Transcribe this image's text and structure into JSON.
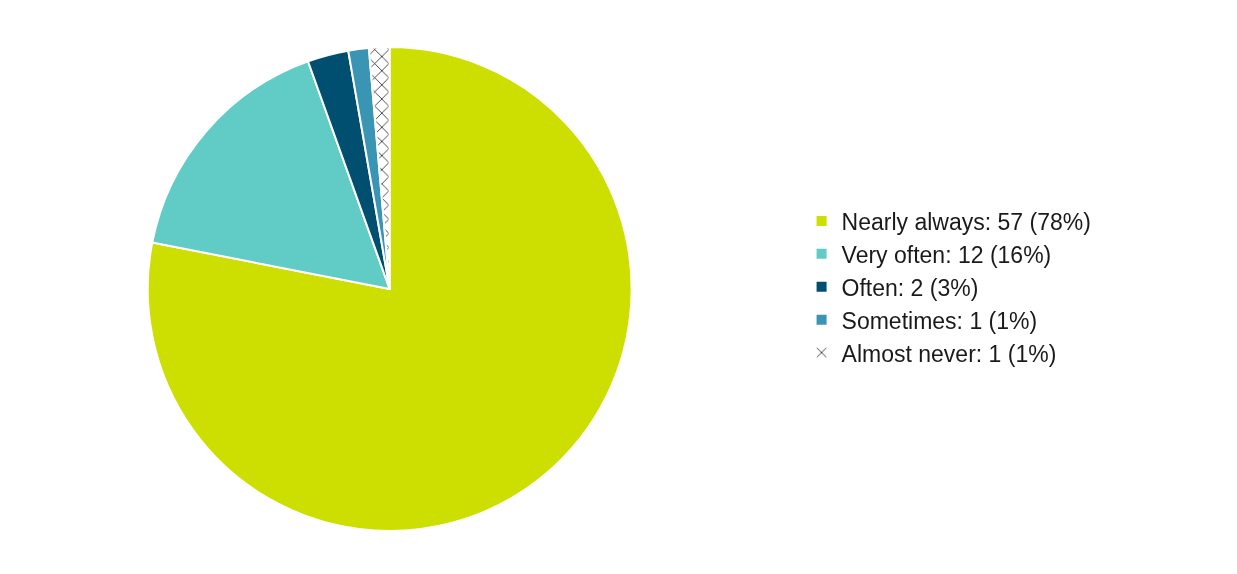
{
  "chart_data": {
    "type": "pie",
    "categories": [
      "Nearly always: 57 (78%)",
      "Very often: 12 (16%)",
      "Often: 2 (3%)",
      "Sometimes: 1 (1%)",
      "Almost never: 1 (1%)"
    ],
    "values": [
      57,
      12,
      2,
      1,
      1
    ],
    "colors": [
      "#cddf00",
      "#61cbc5",
      "#004f71",
      "#3a95b5",
      "#ffffff"
    ],
    "legend": "right"
  }
}
